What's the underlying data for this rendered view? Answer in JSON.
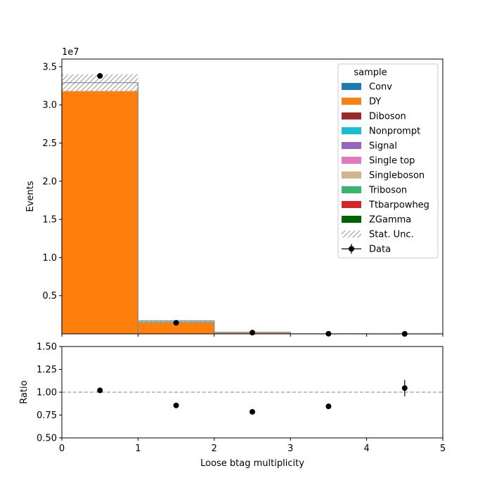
{
  "chart_data": [
    {
      "type": "bar",
      "stacked": true,
      "x_edges": [
        0,
        1,
        2,
        3,
        4,
        5
      ],
      "xlim": [
        0,
        5
      ],
      "ylim": [
        0,
        36000000
      ],
      "ylabel": "Events",
      "offset_text": "1e7",
      "y_ticks": [
        5000000,
        10000000,
        15000000,
        20000000,
        25000000,
        30000000,
        35000000
      ],
      "y_tick_labels": [
        "0.5",
        "1.0",
        "1.5",
        "2.0",
        "2.5",
        "3.0",
        "3.5"
      ],
      "legend_title": "sample",
      "legend_placement": "top-right",
      "series": [
        {
          "name": "Conv",
          "color": "#1f77b4",
          "values": [
            0,
            0,
            0,
            0,
            0
          ]
        },
        {
          "name": "DY",
          "color": "#ff7f0e",
          "values": [
            31800000,
            1500000,
            120000,
            5000,
            200
          ]
        },
        {
          "name": "Diboson",
          "color": "#9a2a2a",
          "values": [
            50000,
            10000,
            2000,
            200,
            10
          ]
        },
        {
          "name": "Nonprompt",
          "color": "#17becf",
          "values": [
            950000,
            100000,
            15000,
            1000,
            50
          ]
        },
        {
          "name": "Signal",
          "color": "#9467bd",
          "values": [
            0,
            0,
            0,
            0,
            0
          ]
        },
        {
          "name": "Single top",
          "color": "#e377c2",
          "values": [
            10000,
            15000,
            8000,
            1000,
            50
          ]
        },
        {
          "name": "Singleboson",
          "color": "#d2b48c",
          "values": [
            20000,
            2000,
            300,
            30,
            2
          ]
        },
        {
          "name": "Triboson",
          "color": "#3cb371",
          "values": [
            500,
            100,
            20,
            2,
            0
          ]
        },
        {
          "name": "Ttbarpowheg",
          "color": "#d62728",
          "values": [
            20000,
            70000,
            60000,
            8000,
            500
          ]
        },
        {
          "name": "ZGamma",
          "color": "#006400",
          "values": [
            50000,
            5000,
            500,
            50,
            5
          ]
        }
      ],
      "stat_unc": {
        "name": "Stat. Unc.",
        "color": "#999999",
        "values": [
          1100000,
          100000,
          20000,
          2000,
          200
        ]
      },
      "data": {
        "name": "Data",
        "x": [
          0.5,
          1.5,
          2.5,
          3.5,
          4.5
        ],
        "values": [
          33800000,
          1450000,
          160000,
          13000,
          800
        ]
      }
    },
    {
      "type": "scatter",
      "xlabel": "Loose btag multiplicity",
      "ylabel": "Ratio",
      "xlim": [
        0,
        5
      ],
      "ylim": [
        0.5,
        1.5
      ],
      "x_ticks": [
        0,
        1,
        2,
        3,
        4,
        5
      ],
      "x_tick_labels": [
        "0",
        "1",
        "2",
        "3",
        "4",
        "5"
      ],
      "y_ticks": [
        0.5,
        0.75,
        1.0,
        1.25,
        1.5
      ],
      "y_tick_labels": [
        "0.50",
        "0.75",
        "1.00",
        "1.25",
        "1.50"
      ],
      "reference_line": 1.0,
      "x": [
        0.5,
        1.5,
        2.5,
        3.5,
        4.5
      ],
      "values": [
        1.02,
        0.855,
        0.785,
        0.845,
        1.045
      ],
      "errors": [
        0.002,
        0.005,
        0.01,
        0.015,
        0.09
      ]
    }
  ]
}
